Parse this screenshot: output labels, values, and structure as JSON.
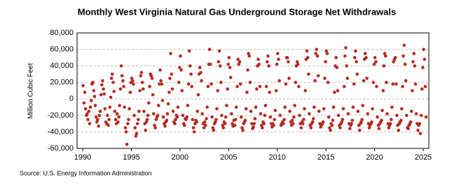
{
  "chart_data": {
    "type": "scatter",
    "title": "Monthly West Virginia Natural Gas Underground Storage Net Withdrawals",
    "ylabel": "Million Cubic Feet",
    "source": "Source: U.S. Energy Information Administration",
    "color": "#b52a22",
    "grid": true,
    "xlim": [
      1989.42,
      2025.58
    ],
    "xticks": [
      1990,
      1995,
      2000,
      2005,
      2010,
      2015,
      2020,
      2025
    ],
    "ylim": [
      -60000,
      80000
    ],
    "yticks": [
      {
        "value": -60000,
        "label": "-60,000"
      },
      {
        "value": -40000,
        "label": "-40,000"
      },
      {
        "value": -20000,
        "label": "-20,000"
      },
      0,
      {
        "value": 20000,
        "label": "20,000"
      },
      {
        "value": 40000,
        "label": "40,000"
      },
      {
        "value": 60000,
        "label": "60,000"
      },
      {
        "value": 80000,
        "label": "80,000"
      }
    ],
    "x": [
      1990.04,
      1990.13,
      1990.21,
      1990.29,
      1990.38,
      1990.46,
      1990.54,
      1990.63,
      1990.71,
      1990.79,
      1990.88,
      1990.96,
      1991.04,
      1991.13,
      1991.21,
      1991.29,
      1991.38,
      1991.46,
      1991.54,
      1991.63,
      1991.71,
      1991.79,
      1991.88,
      1991.96,
      1992.04,
      1992.13,
      1992.21,
      1992.29,
      1992.38,
      1992.46,
      1992.54,
      1992.63,
      1992.71,
      1992.79,
      1992.88,
      1992.96,
      1993.04,
      1993.13,
      1993.21,
      1993.29,
      1993.38,
      1993.46,
      1993.54,
      1993.63,
      1993.71,
      1993.79,
      1993.88,
      1993.96,
      1994.04,
      1994.13,
      1994.21,
      1994.29,
      1994.38,
      1994.46,
      1994.54,
      1994.63,
      1994.71,
      1994.79,
      1994.88,
      1994.96,
      1995.04,
      1995.13,
      1995.21,
      1995.29,
      1995.38,
      1995.46,
      1995.54,
      1995.63,
      1995.71,
      1995.79,
      1995.88,
      1995.96,
      1996.04,
      1996.13,
      1996.21,
      1996.29,
      1996.38,
      1996.46,
      1996.54,
      1996.63,
      1996.71,
      1996.79,
      1996.88,
      1996.96,
      1997.04,
      1997.13,
      1997.21,
      1997.29,
      1997.38,
      1997.46,
      1997.54,
      1997.63,
      1997.71,
      1997.79,
      1997.88,
      1997.96,
      1998.04,
      1998.13,
      1998.21,
      1998.29,
      1998.38,
      1998.46,
      1998.54,
      1998.63,
      1998.71,
      1998.79,
      1998.88,
      1998.96,
      1999.04,
      1999.13,
      1999.21,
      1999.29,
      1999.38,
      1999.46,
      1999.54,
      1999.63,
      1999.71,
      1999.79,
      1999.88,
      1999.96,
      2000.04,
      2000.13,
      2000.21,
      2000.29,
      2000.38,
      2000.46,
      2000.54,
      2000.63,
      2000.71,
      2000.79,
      2000.88,
      2000.96,
      2001.04,
      2001.13,
      2001.21,
      2001.29,
      2001.38,
      2001.46,
      2001.54,
      2001.63,
      2001.71,
      2001.79,
      2001.88,
      2001.96,
      2002.04,
      2002.13,
      2002.21,
      2002.29,
      2002.38,
      2002.46,
      2002.54,
      2002.63,
      2002.71,
      2002.79,
      2002.88,
      2002.96,
      2003.04,
      2003.13,
      2003.21,
      2003.29,
      2003.38,
      2003.46,
      2003.54,
      2003.63,
      2003.71,
      2003.79,
      2003.88,
      2003.96,
      2004.04,
      2004.13,
      2004.21,
      2004.29,
      2004.38,
      2004.46,
      2004.54,
      2004.63,
      2004.71,
      2004.79,
      2004.88,
      2004.96,
      2005.04,
      2005.13,
      2005.21,
      2005.29,
      2005.38,
      2005.46,
      2005.54,
      2005.63,
      2005.71,
      2005.79,
      2005.88,
      2005.96,
      2006.04,
      2006.13,
      2006.21,
      2006.29,
      2006.38,
      2006.46,
      2006.54,
      2006.63,
      2006.71,
      2006.79,
      2006.88,
      2006.96,
      2007.04,
      2007.13,
      2007.21,
      2007.29,
      2007.38,
      2007.46,
      2007.54,
      2007.63,
      2007.71,
      2007.79,
      2007.88,
      2007.96,
      2008.04,
      2008.13,
      2008.21,
      2008.29,
      2008.38,
      2008.46,
      2008.54,
      2008.63,
      2008.71,
      2008.79,
      2008.88,
      2008.96,
      2009.04,
      2009.13,
      2009.21,
      2009.29,
      2009.38,
      2009.46,
      2009.54,
      2009.63,
      2009.71,
      2009.79,
      2009.88,
      2009.96,
      2010.04,
      2010.13,
      2010.21,
      2010.29,
      2010.38,
      2010.46,
      2010.54,
      2010.63,
      2010.71,
      2010.79,
      2010.88,
      2010.96,
      2011.04,
      2011.13,
      2011.21,
      2011.29,
      2011.38,
      2011.46,
      2011.54,
      2011.63,
      2011.71,
      2011.79,
      2011.88,
      2011.96,
      2012.04,
      2012.13,
      2012.21,
      2012.29,
      2012.38,
      2012.46,
      2012.54,
      2012.63,
      2012.71,
      2012.79,
      2012.88,
      2012.96,
      2013.04,
      2013.13,
      2013.21,
      2013.29,
      2013.38,
      2013.46,
      2013.54,
      2013.63,
      2013.71,
      2013.79,
      2013.88,
      2013.96,
      2014.04,
      2014.13,
      2014.21,
      2014.29,
      2014.38,
      2014.46,
      2014.54,
      2014.63,
      2014.71,
      2014.79,
      2014.88,
      2014.96,
      2015.04,
      2015.13,
      2015.21,
      2015.29,
      2015.38,
      2015.46,
      2015.54,
      2015.63,
      2015.71,
      2015.79,
      2015.88,
      2015.96,
      2016.04,
      2016.13,
      2016.21,
      2016.29,
      2016.38,
      2016.46,
      2016.54,
      2016.63,
      2016.71,
      2016.79,
      2016.88,
      2016.96,
      2017.04,
      2017.13,
      2017.21,
      2017.29,
      2017.38,
      2017.46,
      2017.54,
      2017.63,
      2017.71,
      2017.79,
      2017.88,
      2017.96,
      2018.04,
      2018.13,
      2018.21,
      2018.29,
      2018.38,
      2018.46,
      2018.54,
      2018.63,
      2018.71,
      2018.79,
      2018.88,
      2018.96,
      2019.04,
      2019.13,
      2019.21,
      2019.29,
      2019.38,
      2019.46,
      2019.54,
      2019.63,
      2019.71,
      2019.79,
      2019.88,
      2019.96,
      2020.04,
      2020.13,
      2020.21,
      2020.29,
      2020.38,
      2020.46,
      2020.54,
      2020.63,
      2020.71,
      2020.79,
      2020.88,
      2020.96,
      2021.04,
      2021.13,
      2021.21,
      2021.29,
      2021.38,
      2021.46,
      2021.54,
      2021.63,
      2021.71,
      2021.79,
      2021.88,
      2021.96,
      2022.04,
      2022.13,
      2022.21,
      2022.29,
      2022.38,
      2022.46,
      2022.54,
      2022.63,
      2022.71,
      2022.79,
      2022.88,
      2022.96,
      2023.04,
      2023.13,
      2023.21,
      2023.29,
      2023.38,
      2023.46,
      2023.54,
      2023.63,
      2023.71,
      2023.79,
      2023.88,
      2023.96,
      2024.04,
      2024.13,
      2024.21,
      2024.29,
      2024.38,
      2024.46,
      2024.54,
      2024.63,
      2024.71,
      2024.79,
      2024.88,
      2024.96,
      2025.04,
      2025.13,
      2025.21,
      2025.29
    ],
    "values": [
      16000,
      -5000,
      8000,
      -12000,
      -20000,
      -18000,
      -25000,
      -15000,
      -30000,
      -10000,
      -2000,
      18000,
      20000,
      10000,
      3000,
      -8000,
      -22000,
      -28000,
      -25000,
      -33000,
      -20000,
      -15000,
      5000,
      17000,
      22000,
      12000,
      6000,
      -12000,
      -28000,
      -30000,
      -20000,
      -32000,
      -25000,
      -10000,
      2000,
      25000,
      30000,
      20000,
      9000,
      -15000,
      -25000,
      -30000,
      -18000,
      -28000,
      -22000,
      -8000,
      12000,
      40000,
      28000,
      22000,
      15000,
      -10000,
      -35000,
      -40000,
      -55000,
      -30000,
      -25000,
      -12000,
      8000,
      20000,
      25000,
      22000,
      18000,
      -20000,
      -35000,
      -45000,
      -42000,
      -30000,
      -25000,
      -15000,
      10000,
      28000,
      32000,
      20000,
      12000,
      -15000,
      -30000,
      -38000,
      -28000,
      -25000,
      -20000,
      -5000,
      15000,
      30000,
      28000,
      25000,
      5000,
      -18000,
      -32000,
      -35000,
      -25000,
      -22000,
      -20000,
      -8000,
      18000,
      35000,
      22000,
      18000,
      -2000,
      -22000,
      -30000,
      -33000,
      -28000,
      -26000,
      -18000,
      -6000,
      8000,
      25000,
      55000,
      30000,
      12000,
      -15000,
      -28000,
      -30000,
      -25000,
      -20000,
      -22000,
      -10000,
      20000,
      38000,
      52000,
      35000,
      10000,
      -20000,
      -30000,
      -32000,
      -24000,
      -25000,
      -22000,
      -8000,
      18000,
      58000,
      40000,
      30000,
      15000,
      -25000,
      -35000,
      -40000,
      -30000,
      -26000,
      -28000,
      -15000,
      5000,
      30000,
      38000,
      32000,
      22000,
      -18000,
      -30000,
      -35000,
      -28000,
      -32000,
      -24000,
      -10000,
      15000,
      42000,
      60000,
      42000,
      18000,
      -22000,
      -35000,
      -38000,
      -30000,
      -28000,
      -25000,
      -12000,
      10000,
      45000,
      58000,
      40000,
      20000,
      -20000,
      -32000,
      -35000,
      -28000,
      -30000,
      -22000,
      -8000,
      12000,
      42000,
      50000,
      38000,
      26000,
      -18000,
      -30000,
      -33000,
      -26000,
      -32000,
      -25000,
      -10000,
      15000,
      48000,
      42000,
      45000,
      18000,
      -22000,
      -35000,
      -38000,
      -30000,
      -28000,
      -26000,
      -12000,
      8000,
      35000,
      55000,
      52000,
      20000,
      -15000,
      -30000,
      -36000,
      -34000,
      -30000,
      -24000,
      -10000,
      12000,
      40000,
      48000,
      42000,
      15000,
      -18000,
      -32000,
      -35000,
      -28000,
      -30000,
      -20000,
      -8000,
      15000,
      45000,
      52000,
      40000,
      8000,
      -22000,
      -30000,
      -34000,
      -30000,
      -32000,
      -25000,
      -14000,
      10000,
      42000,
      55000,
      48000,
      22000,
      -20000,
      -32000,
      -30000,
      -28000,
      -30000,
      -25000,
      -10000,
      18000,
      50000,
      50000,
      45000,
      25000,
      -15000,
      -28000,
      -32000,
      -26000,
      -30000,
      -22000,
      -8000,
      20000,
      40000,
      45000,
      42000,
      15000,
      -20000,
      -30000,
      -35000,
      -28000,
      -30000,
      -25000,
      -12000,
      10000,
      48000,
      58000,
      50000,
      30000,
      -18000,
      -32000,
      -35000,
      -30000,
      -28000,
      -24000,
      -10000,
      22000,
      55000,
      60000,
      52000,
      28000,
      -15000,
      -30000,
      -34000,
      -32000,
      -30000,
      -28000,
      -12000,
      25000,
      45000,
      58000,
      55000,
      20000,
      -22000,
      -35000,
      -38000,
      -30000,
      -32000,
      -26000,
      -10000,
      8000,
      40000,
      50000,
      38000,
      10000,
      -20000,
      -32000,
      -35000,
      -30000,
      -28000,
      -25000,
      -12000,
      15000,
      52000,
      62000,
      40000,
      25000,
      -18000,
      -30000,
      -36000,
      -32000,
      -30000,
      -26000,
      -10000,
      18000,
      50000,
      58000,
      45000,
      30000,
      -15000,
      -32000,
      -38000,
      -30000,
      -28000,
      -25000,
      -8000,
      22000,
      48000,
      55000,
      50000,
      25000,
      -18000,
      -30000,
      -35000,
      -32000,
      -30000,
      -28000,
      -12000,
      20000,
      42000,
      50000,
      45000,
      15000,
      -22000,
      -32000,
      -36000,
      -30000,
      -28000,
      -26000,
      -14000,
      10000,
      40000,
      55000,
      52000,
      20000,
      -18000,
      -30000,
      -35000,
      -32000,
      -30000,
      -25000,
      -10000,
      18000,
      45000,
      48000,
      50000,
      18000,
      -20000,
      -32000,
      -38000,
      -30000,
      -28000,
      -26000,
      -12000,
      15000,
      52000,
      65000,
      42000,
      22000,
      -20000,
      -35000,
      -36000,
      -32000,
      -30000,
      -28000,
      -15000,
      10000,
      45000,
      55000,
      40000,
      18000,
      -18000,
      -30000,
      -38000,
      -32000,
      -30000,
      -42000,
      -20000,
      12000,
      38000,
      60000,
      48000,
      15000,
      -22000
    ]
  }
}
